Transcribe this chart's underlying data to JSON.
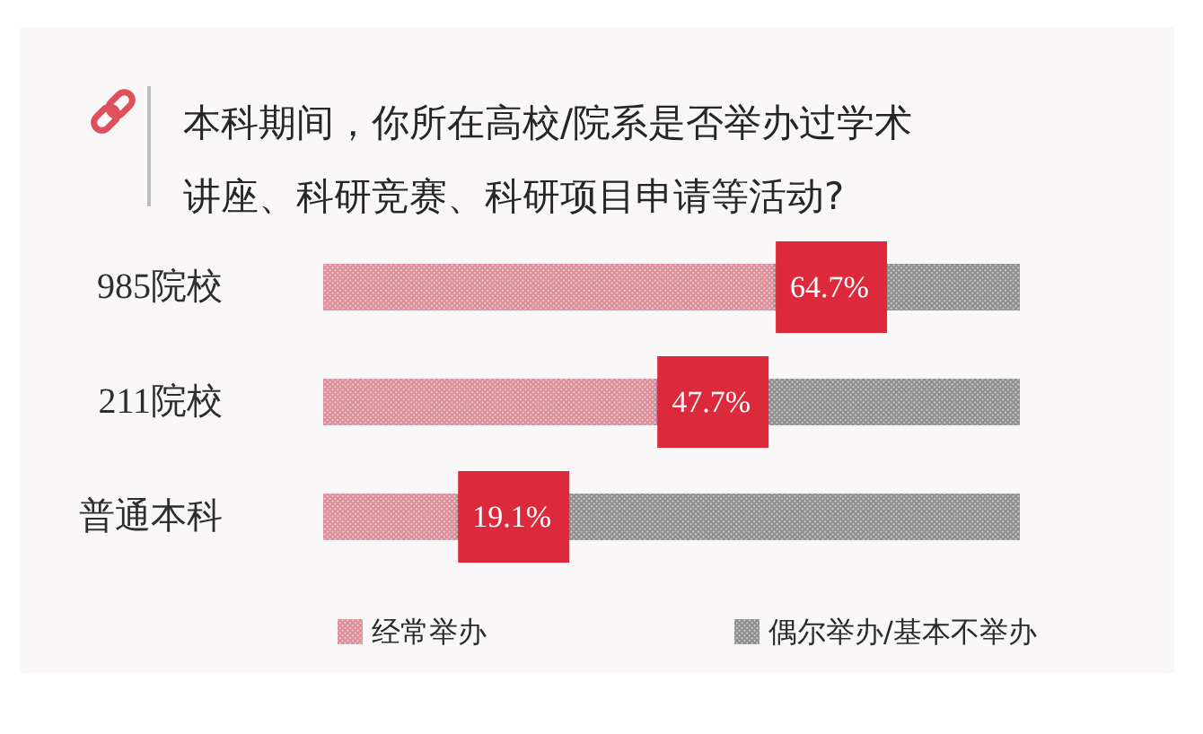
{
  "chart_data": {
    "type": "bar",
    "orientation": "horizontal",
    "stacked": true,
    "title": "本科期间，你所在高校/院系是否举办过学术讲座、科研竞赛、科研项目申请等活动?",
    "categories": [
      "985院校",
      "211院校",
      "普通本科"
    ],
    "series": [
      {
        "name": "经常举办",
        "color": "#dc8f99",
        "values": [
          64.7,
          47.7,
          19.1
        ],
        "value_labels": [
          "64.7%",
          "47.7%",
          "19.1%"
        ]
      },
      {
        "name": "偶尔举办/基本不举办",
        "color": "#8f8f8f",
        "values": [
          35.3,
          52.3,
          80.9
        ]
      }
    ],
    "xlim": [
      0,
      100
    ],
    "tick_labels": "y",
    "legend": "bottom"
  }
}
